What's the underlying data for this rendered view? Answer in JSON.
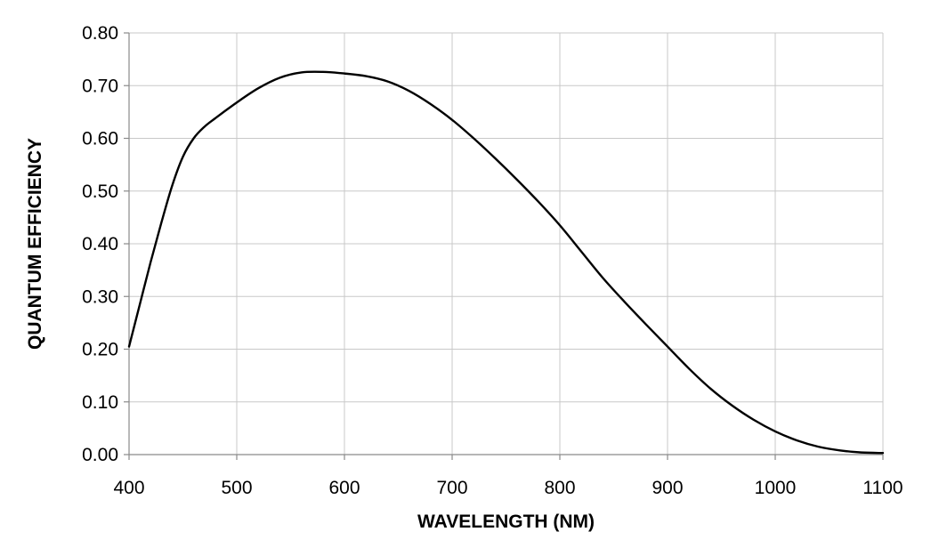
{
  "chart_data": {
    "type": "line",
    "title": "",
    "xlabel": "WAVELENGTH (NM)",
    "ylabel": "QUANTUM EFFICIENCY",
    "xlim": [
      400,
      1100
    ],
    "ylim": [
      0,
      0.8
    ],
    "x_ticks": [
      400,
      500,
      600,
      700,
      800,
      900,
      1000,
      1100
    ],
    "x_tick_labels": [
      "400",
      "500",
      "600",
      "700",
      "800",
      "900",
      "1000",
      "1100"
    ],
    "y_ticks": [
      0,
      0.1,
      0.2,
      0.3,
      0.4,
      0.5,
      0.6,
      0.7,
      0.8
    ],
    "y_tick_labels": [
      "0.00",
      "0.10",
      "0.20",
      "0.30",
      "0.40",
      "0.50",
      "0.60",
      "0.70",
      "0.80"
    ],
    "grid": true,
    "line_color": "#000000",
    "grid_color": "#c8c8c8",
    "series": [
      {
        "x": [
          400,
          410,
          420,
          430,
          440,
          450,
          460,
          470,
          480,
          500,
          520,
          540,
          560,
          580,
          600,
          620,
          640,
          660,
          680,
          700,
          720,
          740,
          760,
          780,
          800,
          820,
          840,
          860,
          880,
          900,
          920,
          940,
          960,
          980,
          1000,
          1020,
          1040,
          1060,
          1080,
          1100
        ],
        "y": [
          0.205,
          0.285,
          0.365,
          0.44,
          0.51,
          0.565,
          0.6,
          0.622,
          0.638,
          0.668,
          0.695,
          0.715,
          0.725,
          0.726,
          0.723,
          0.718,
          0.708,
          0.69,
          0.665,
          0.635,
          0.6,
          0.562,
          0.522,
          0.48,
          0.435,
          0.385,
          0.335,
          0.29,
          0.247,
          0.205,
          0.163,
          0.125,
          0.093,
          0.066,
          0.044,
          0.027,
          0.015,
          0.008,
          0.004,
          0.003
        ]
      }
    ]
  }
}
